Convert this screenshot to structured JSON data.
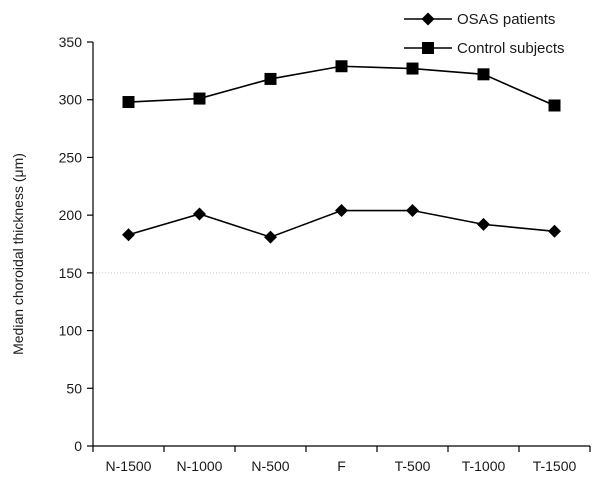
{
  "chart_data": {
    "type": "line",
    "title": "",
    "xlabel": "",
    "ylabel": "Median choroidal thickness (μm)",
    "categories": [
      "N-1500",
      "N-1000",
      "N-500",
      "F",
      "T-500",
      "T-1000",
      "T-1500"
    ],
    "ylim": [
      0,
      350
    ],
    "yticks": [
      0,
      50,
      100,
      150,
      200,
      250,
      300,
      350
    ],
    "grid": false,
    "reference_line_y": 150,
    "legend_position": "top-right",
    "series": [
      {
        "name": "OSAS patients",
        "marker": "diamond",
        "color": "#000000",
        "values": [
          183,
          201,
          181,
          204,
          204,
          192,
          186
        ]
      },
      {
        "name": "Control subjects",
        "marker": "square",
        "color": "#000000",
        "values": [
          298,
          301,
          318,
          329,
          327,
          322,
          295
        ]
      }
    ]
  }
}
